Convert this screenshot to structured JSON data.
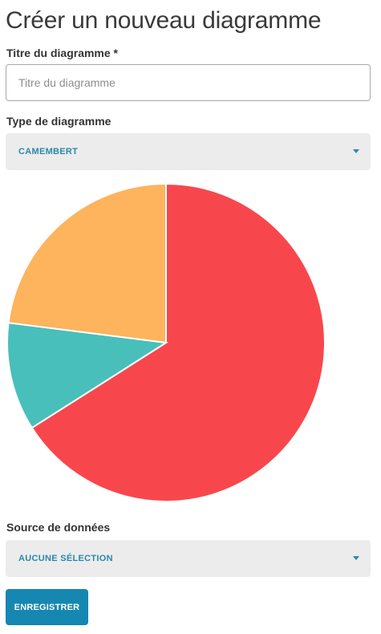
{
  "page": {
    "title": "Créer un nouveau diagramme"
  },
  "form": {
    "title_field": {
      "label": "Titre du diagramme *",
      "value": "",
      "placeholder": "Titre du diagramme"
    },
    "type_field": {
      "label": "Type de diagramme",
      "selected": "CAMEMBERT",
      "caret_icon": "caret-down-icon"
    },
    "source_field": {
      "label": "Source de données",
      "selected": "AUCUNE SÉLECTION",
      "caret_icon": "caret-down-icon"
    },
    "save_label": "ENREGISTRER"
  },
  "colors": {
    "accent": "#1587b1",
    "select_text": "#2a89a8",
    "select_bg": "#ececec"
  },
  "chart_data": {
    "type": "pie",
    "slices": [
      {
        "value": 66,
        "color": "#f7474d"
      },
      {
        "value": 11,
        "color": "#48bfbb"
      },
      {
        "value": 23,
        "color": "#fdb45c"
      }
    ],
    "start": "top",
    "direction": "clockwise",
    "slice_border": "#ffffff"
  }
}
